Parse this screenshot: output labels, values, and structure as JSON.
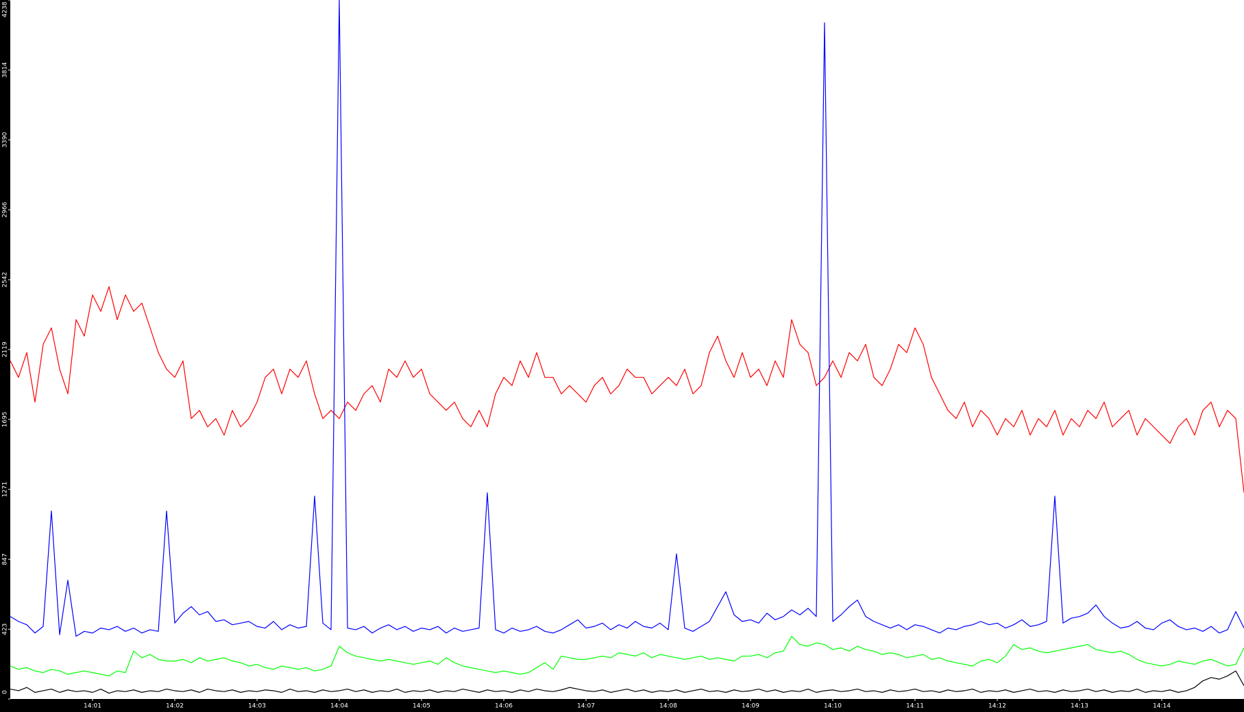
{
  "chart_data": {
    "type": "line",
    "xlim": [
      0,
      15
    ],
    "xticks": [
      {
        "value": 1,
        "label": "14:01"
      },
      {
        "value": 2,
        "label": "14:02"
      },
      {
        "value": 3,
        "label": "14:03"
      },
      {
        "value": 4,
        "label": "14:04"
      },
      {
        "value": 5,
        "label": "14:05"
      },
      {
        "value": 6,
        "label": "14:06"
      },
      {
        "value": 7,
        "label": "14:07"
      },
      {
        "value": 8,
        "label": "14:08"
      },
      {
        "value": 9,
        "label": "14:09"
      },
      {
        "value": 10,
        "label": "14:10"
      },
      {
        "value": 11,
        "label": "14:11"
      },
      {
        "value": 12,
        "label": "14:12"
      },
      {
        "value": 13,
        "label": "14:13"
      },
      {
        "value": 14,
        "label": "14:14"
      }
    ],
    "ylim": [
      0,
      4238
    ],
    "yticks": [
      0,
      423,
      847,
      1271,
      1695,
      2119,
      2542,
      2966,
      3390,
      3814,
      4238
    ],
    "grid": false,
    "x": [
      0,
      0.1,
      0.2,
      0.3,
      0.4,
      0.5,
      0.6,
      0.7,
      0.8,
      0.9,
      1,
      1.1,
      1.2,
      1.3,
      1.4,
      1.5,
      1.6,
      1.7,
      1.8,
      1.9,
      2,
      2.1,
      2.2,
      2.3,
      2.4,
      2.5,
      2.6,
      2.7,
      2.8,
      2.9,
      3,
      3.1,
      3.2,
      3.3,
      3.4,
      3.5,
      3.6,
      3.7,
      3.8,
      3.9,
      4,
      4.1,
      4.2,
      4.3,
      4.4,
      4.5,
      4.6,
      4.7,
      4.8,
      4.9,
      5,
      5.1,
      5.2,
      5.3,
      5.4,
      5.5,
      5.6,
      5.7,
      5.8,
      5.9,
      6,
      6.1,
      6.2,
      6.3,
      6.4,
      6.5,
      6.6,
      6.7,
      6.8,
      6.9,
      7,
      7.1,
      7.2,
      7.3,
      7.4,
      7.5,
      7.6,
      7.7,
      7.8,
      7.9,
      8,
      8.1,
      8.2,
      8.3,
      8.4,
      8.5,
      8.6,
      8.7,
      8.8,
      8.9,
      9,
      9.1,
      9.2,
      9.3,
      9.4,
      9.5,
      9.6,
      9.7,
      9.8,
      9.9,
      10,
      10.1,
      10.2,
      10.3,
      10.4,
      10.5,
      10.6,
      10.7,
      10.8,
      10.9,
      11,
      11.1,
      11.2,
      11.3,
      11.4,
      11.5,
      11.6,
      11.7,
      11.8,
      11.9,
      12,
      12.1,
      12.2,
      12.3,
      12.4,
      12.5,
      12.6,
      12.7,
      12.8,
      12.9,
      13,
      13.1,
      13.2,
      13.3,
      13.4,
      13.5,
      13.6,
      13.7,
      13.8,
      13.9,
      14,
      14.1,
      14.2,
      14.3,
      14.4,
      14.5,
      14.6,
      14.7,
      14.8,
      14.9,
      15
    ],
    "series": [
      {
        "color": "#ff0000",
        "values": [
          2050,
          1950,
          2100,
          1800,
          2150,
          2250,
          2000,
          1850,
          2300,
          2200,
          2450,
          2350,
          2500,
          2300,
          2450,
          2350,
          2400,
          2250,
          2100,
          2000,
          1950,
          2050,
          1700,
          1750,
          1650,
          1700,
          1600,
          1750,
          1650,
          1700,
          1800,
          1950,
          2000,
          1850,
          2000,
          1950,
          2050,
          1850,
          1700,
          1750,
          1700,
          1800,
          1750,
          1850,
          1900,
          1800,
          2000,
          1950,
          2050,
          1950,
          2000,
          1850,
          1800,
          1750,
          1800,
          1700,
          1650,
          1750,
          1650,
          1850,
          1950,
          1900,
          2050,
          1950,
          2100,
          1950,
          1950,
          1850,
          1900,
          1850,
          1800,
          1900,
          1950,
          1850,
          1900,
          2000,
          1950,
          1950,
          1850,
          1900,
          1950,
          1900,
          2000,
          1850,
          1900,
          2100,
          2200,
          2050,
          1950,
          2100,
          1950,
          2000,
          1900,
          2050,
          1950,
          2300,
          2150,
          2100,
          1900,
          1950,
          2050,
          1950,
          2100,
          2050,
          2150,
          1950,
          1900,
          2000,
          2150,
          2100,
          2250,
          2150,
          1950,
          1850,
          1750,
          1700,
          1800,
          1650,
          1750,
          1700,
          1600,
          1700,
          1650,
          1750,
          1600,
          1700,
          1650,
          1750,
          1600,
          1700,
          1650,
          1750,
          1700,
          1800,
          1650,
          1700,
          1750,
          1600,
          1700,
          1650,
          1600,
          1550,
          1650,
          1700,
          1600,
          1750,
          1800,
          1650,
          1750,
          1700,
          1250
        ]
      },
      {
        "color": "#0000ff",
        "values": [
          500,
          470,
          450,
          400,
          440,
          1140,
          390,
          720,
          380,
          410,
          400,
          430,
          420,
          440,
          410,
          430,
          400,
          420,
          410,
          1140,
          460,
          520,
          560,
          510,
          530,
          470,
          480,
          450,
          460,
          470,
          440,
          430,
          470,
          420,
          450,
          430,
          440,
          1230,
          460,
          420,
          4238,
          430,
          420,
          440,
          400,
          430,
          450,
          420,
          440,
          410,
          430,
          420,
          440,
          400,
          430,
          410,
          420,
          430,
          1250,
          420,
          400,
          430,
          410,
          420,
          440,
          410,
          400,
          420,
          450,
          480,
          430,
          440,
          460,
          420,
          450,
          430,
          470,
          440,
          430,
          460,
          420,
          880,
          430,
          410,
          440,
          470,
          560,
          650,
          510,
          470,
          480,
          460,
          520,
          480,
          500,
          540,
          510,
          550,
          500,
          4100,
          470,
          510,
          560,
          600,
          500,
          470,
          450,
          430,
          450,
          420,
          450,
          440,
          420,
          400,
          430,
          420,
          440,
          450,
          470,
          450,
          460,
          430,
          450,
          480,
          440,
          450,
          470,
          1230,
          460,
          490,
          500,
          520,
          570,
          500,
          460,
          430,
          440,
          470,
          430,
          420,
          460,
          480,
          440,
          420,
          430,
          410,
          440,
          400,
          420,
          530,
          430
        ]
      },
      {
        "color": "#00ff00",
        "values": [
          200,
          180,
          190,
          170,
          160,
          180,
          170,
          150,
          160,
          170,
          160,
          150,
          140,
          170,
          160,
          290,
          250,
          270,
          240,
          230,
          230,
          240,
          220,
          250,
          230,
          240,
          250,
          230,
          220,
          200,
          210,
          190,
          180,
          200,
          190,
          180,
          190,
          170,
          180,
          200,
          320,
          280,
          260,
          250,
          240,
          230,
          240,
          230,
          220,
          210,
          220,
          230,
          210,
          250,
          220,
          200,
          190,
          180,
          170,
          160,
          170,
          160,
          150,
          160,
          190,
          220,
          180,
          260,
          250,
          240,
          240,
          250,
          260,
          250,
          280,
          270,
          260,
          280,
          250,
          270,
          260,
          250,
          240,
          250,
          260,
          240,
          250,
          240,
          230,
          260,
          260,
          270,
          250,
          280,
          290,
          380,
          330,
          320,
          340,
          330,
          300,
          310,
          290,
          320,
          300,
          290,
          270,
          280,
          270,
          250,
          260,
          270,
          240,
          250,
          230,
          220,
          210,
          200,
          230,
          240,
          220,
          260,
          330,
          300,
          310,
          290,
          280,
          290,
          300,
          310,
          320,
          330,
          300,
          290,
          280,
          290,
          270,
          240,
          220,
          210,
          200,
          210,
          230,
          220,
          210,
          230,
          240,
          220,
          200,
          210,
          310
        ]
      },
      {
        "color": "#000000",
        "values": [
          60,
          50,
          70,
          40,
          50,
          60,
          40,
          55,
          45,
          50,
          40,
          60,
          35,
          50,
          45,
          55,
          40,
          50,
          45,
          60,
          50,
          45,
          55,
          40,
          60,
          50,
          45,
          55,
          40,
          50,
          45,
          55,
          50,
          40,
          60,
          45,
          50,
          40,
          55,
          45,
          50,
          60,
          45,
          55,
          40,
          50,
          45,
          60,
          40,
          50,
          45,
          55,
          40,
          50,
          45,
          60,
          50,
          40,
          55,
          45,
          50,
          40,
          55,
          45,
          60,
          50,
          45,
          55,
          70,
          60,
          50,
          45,
          55,
          40,
          50,
          60,
          45,
          55,
          40,
          50,
          45,
          55,
          40,
          50,
          60,
          45,
          50,
          40,
          55,
          45,
          50,
          60,
          45,
          55,
          40,
          50,
          45,
          60,
          40,
          50,
          55,
          45,
          50,
          60,
          45,
          50,
          40,
          55,
          45,
          50,
          60,
          45,
          50,
          40,
          55,
          45,
          50,
          60,
          40,
          50,
          45,
          55,
          40,
          50,
          60,
          45,
          50,
          40,
          55,
          45,
          50,
          60,
          45,
          55,
          40,
          50,
          45,
          60,
          40,
          50,
          45,
          55,
          40,
          50,
          70,
          110,
          130,
          120,
          140,
          170,
          80
        ]
      }
    ]
  }
}
